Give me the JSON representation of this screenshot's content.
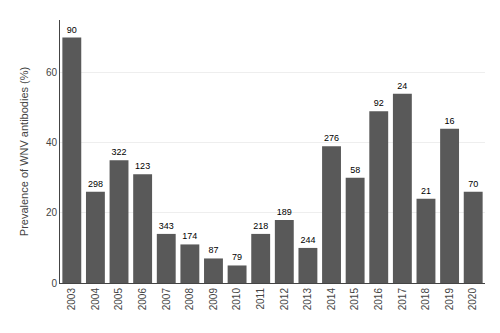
{
  "chart_data": {
    "type": "bar",
    "ylabel": "Prevalence of WNV antibodies (%)",
    "categories": [
      "2003",
      "2004",
      "2005",
      "2006",
      "2007",
      "2008",
      "2009",
      "2010",
      "2011",
      "2012",
      "2013",
      "2014",
      "2015",
      "2016",
      "2017",
      "2018",
      "2019",
      "2020"
    ],
    "values": [
      70,
      26,
      35,
      31,
      14,
      11,
      7,
      5,
      14,
      18,
      10,
      39,
      30,
      49,
      54,
      24,
      44,
      26
    ],
    "n_samples": [
      90,
      298,
      322,
      123,
      343,
      174,
      87,
      79,
      218,
      189,
      244,
      276,
      58,
      92,
      24,
      21,
      16,
      70
    ],
    "color": "#595959",
    "ylim": [
      0,
      75
    ],
    "yticks": [
      0,
      20,
      40,
      60
    ],
    "grid": true
  }
}
